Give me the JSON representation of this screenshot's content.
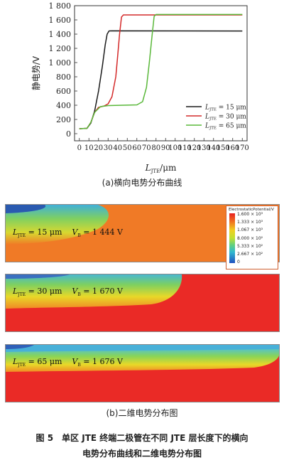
{
  "chart_data": {
    "type": "line",
    "title": "",
    "ylabel": "静电势/V",
    "xlabel_main": "L",
    "xlabel_sub": "JTE",
    "xlabel_unit": "/μm",
    "xlim": [
      -5,
      175
    ],
    "ylim": [
      -100,
      1800
    ],
    "xticks": [
      0,
      10,
      20,
      30,
      40,
      50,
      60,
      70,
      80,
      90,
      100,
      110,
      120,
      130,
      140,
      150,
      160,
      170
    ],
    "yticks": [
      0,
      200,
      400,
      600,
      800,
      1000,
      1200,
      1400,
      1600,
      1800
    ],
    "ytick_labels": [
      "0",
      "200",
      "400",
      "600",
      "800",
      "1 000",
      "1 200",
      "1 400",
      "1 600",
      "1 800"
    ],
    "legend_position": "bottom-right",
    "series": [
      {
        "name_main": "L",
        "name_sub": "JTE",
        "name_rest": " = 15 μm",
        "color": "#1a1a1a",
        "x": [
          0,
          8,
          12,
          16,
          20,
          24,
          27,
          29,
          31,
          34,
          170
        ],
        "y": [
          70,
          75,
          150,
          320,
          600,
          950,
          1250,
          1400,
          1445,
          1446,
          1444
        ]
      },
      {
        "name_main": "L",
        "name_sub": "JTE",
        "name_rest": " = 30 μm",
        "color": "#d42a2a",
        "x": [
          0,
          8,
          12,
          16,
          20,
          26,
          30,
          34,
          38,
          40,
          42,
          44,
          46,
          170
        ],
        "y": [
          70,
          75,
          160,
          300,
          370,
          390,
          420,
          520,
          800,
          1100,
          1400,
          1640,
          1670,
          1670
        ]
      },
      {
        "name_main": "L",
        "name_sub": "JTE",
        "name_rest": " = 65 μm",
        "color": "#5ab83a",
        "x": [
          0,
          8,
          12,
          16,
          22,
          30,
          45,
          60,
          66,
          70,
          73,
          76,
          78,
          80,
          170
        ],
        "y": [
          70,
          75,
          160,
          300,
          380,
          395,
          400,
          405,
          450,
          650,
          1000,
          1400,
          1650,
          1676,
          1676
        ]
      }
    ]
  },
  "caption_a": "(a)横向电势分布曲线",
  "panels": [
    {
      "l_main": "L",
      "l_sub": "JTE",
      "l_value": " = 15 μm",
      "v_main": "V",
      "v_sub": "B",
      "v_value": " = 1 444 V",
      "jte_um": 15
    },
    {
      "l_main": "L",
      "l_sub": "JTE",
      "l_value": " = 30 μm",
      "v_main": "V",
      "v_sub": "B",
      "v_value": " = 1 670 V",
      "jte_um": 30
    },
    {
      "l_main": "L",
      "l_sub": "JTE",
      "l_value": " = 65 μm",
      "v_main": "V",
      "v_sub": "B",
      "v_value": " = 1 676 V",
      "jte_um": 65
    }
  ],
  "colorbar": {
    "title": "ElectrostaticPotential/V",
    "ticks": [
      "1.600 × 10³",
      "1.333 × 10³",
      "1.067 × 10³",
      "8.000 × 10²",
      "5.333 × 10²",
      "2.667 × 10²",
      "0"
    ]
  },
  "caption_b": "(b)二维电势分布图",
  "figure_caption_line1": "图 5　单区 JTE 终端二极管在不同 JTE 层长度下的横向",
  "figure_caption_line2": "电势分布曲线和二维电势分布图"
}
